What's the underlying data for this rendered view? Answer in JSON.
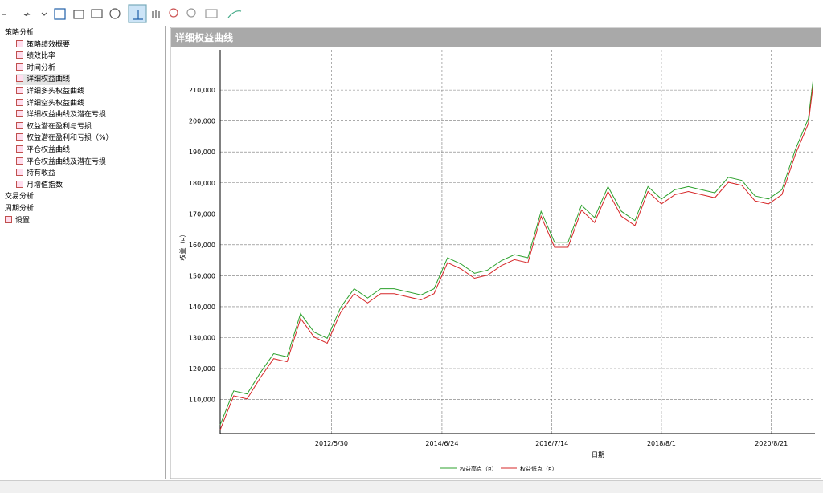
{
  "tree": [
    {
      "label": "策略分析",
      "children": [
        "策略绩效概要",
        "绩效比率",
        "时间分析",
        "详细权益曲线",
        "详细多头权益曲线",
        "详细空头权益曲线",
        "详细权益曲线及潜在亏损",
        "权益潜在盈利与亏损",
        "权益潜在盈利和亏损（%）",
        "平仓权益曲线",
        "平仓权益曲线及潜在亏损",
        "持有收益",
        "月增值指数"
      ]
    },
    {
      "label": "交易分析",
      "children": []
    },
    {
      "label": "周期分析",
      "children": []
    },
    {
      "label": "设置",
      "children": []
    }
  ],
  "chart_data": {
    "type": "line",
    "title": "详细权益曲线",
    "xlabel": "日期",
    "ylabel": "权益（¤）",
    "x": [
      "2010/5/1",
      "2010/8/1",
      "2010/11/1",
      "2011/2/1",
      "2011/5/1",
      "2011/8/1",
      "2011/11/1",
      "2012/2/1",
      "2012/5/1",
      "2012/8/1",
      "2012/11/1",
      "2013/2/1",
      "2013/5/1",
      "2013/8/1",
      "2013/11/1",
      "2014/2/1",
      "2014/5/1",
      "2014/8/1",
      "2014/11/1",
      "2015/2/1",
      "2015/5/1",
      "2015/8/1",
      "2015/11/1",
      "2016/2/1",
      "2016/5/1",
      "2016/8/1",
      "2016/11/1",
      "2017/2/1",
      "2017/5/1",
      "2017/8/1",
      "2017/11/1",
      "2018/2/1",
      "2018/5/1",
      "2018/8/1",
      "2018/11/1",
      "2019/2/1",
      "2019/5/1",
      "2019/8/1",
      "2019/11/1",
      "2020/2/1",
      "2020/5/1",
      "2020/8/1",
      "2020/11/1",
      "2021/2/1",
      "2021/5/1",
      "2021/6/1"
    ],
    "series": [
      {
        "name": "权益高点（¤）",
        "color": "#2ca02c",
        "values": [
          101800,
          112800,
          111800,
          118800,
          124800,
          123800,
          137800,
          131800,
          129800,
          139800,
          145800,
          142800,
          145800,
          145800,
          144800,
          143800,
          145800,
          155800,
          153800,
          150800,
          151800,
          154800,
          156800,
          155800,
          170800,
          160800,
          160800,
          172800,
          168800,
          178800,
          170800,
          167800,
          178800,
          174800,
          177800,
          178800,
          177800,
          176800,
          181800,
          180800,
          175800,
          174800,
          177800,
          190800,
          200800,
          212800
        ]
      },
      {
        "name": "权益低点（¤）",
        "color": "#d62728",
        "values": [
          100200,
          111200,
          110200,
          117200,
          123200,
          122200,
          136200,
          130200,
          128200,
          138200,
          144200,
          141200,
          144200,
          144200,
          143200,
          142200,
          144200,
          154200,
          152200,
          149200,
          150200,
          153200,
          155200,
          154200,
          169200,
          159200,
          159200,
          171200,
          167200,
          177200,
          169200,
          166200,
          177200,
          173200,
          176200,
          177200,
          176200,
          175200,
          180200,
          179200,
          174200,
          173200,
          176200,
          189200,
          199200,
          211200
        ]
      }
    ],
    "xlim": [
      "2010/5/1",
      "2021/6/15"
    ],
    "xticks": [
      "2012/5/30",
      "2014/6/24",
      "2016/7/14",
      "2018/8/1",
      "2020/8/21"
    ],
    "ylim": [
      99000,
      223000
    ],
    "yticks": [
      {
        "value": 110000,
        "label": "110,000"
      },
      {
        "value": 120000,
        "label": "120,000"
      },
      {
        "value": 130000,
        "label": "130,000"
      },
      {
        "value": 140000,
        "label": "140,000"
      },
      {
        "value": 150000,
        "label": "150,000"
      },
      {
        "value": 160000,
        "label": "160,000"
      },
      {
        "value": 170000,
        "label": "170,000"
      },
      {
        "value": 180000,
        "label": "180,000"
      },
      {
        "value": 190000,
        "label": "190,000"
      },
      {
        "value": 200000,
        "label": "200,000"
      },
      {
        "value": 210000,
        "label": "210,000"
      }
    ],
    "grid": true,
    "legend": "bottom"
  }
}
